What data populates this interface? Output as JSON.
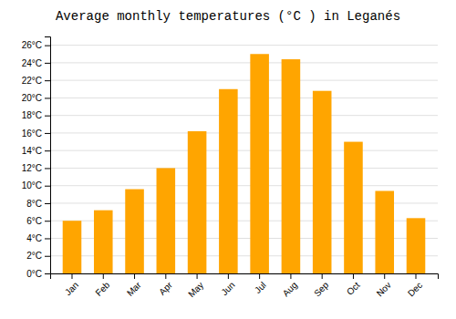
{
  "chart_data": {
    "type": "bar",
    "title": "Average monthly temperatures (°C ) in Leganés",
    "categories": [
      "Jan",
      "Feb",
      "Mar",
      "Apr",
      "May",
      "Jun",
      "Jul",
      "Aug",
      "Sep",
      "Oct",
      "Nov",
      "Dec"
    ],
    "values": [
      6.0,
      7.2,
      9.6,
      12.0,
      16.2,
      21.0,
      25.0,
      24.4,
      20.8,
      15.0,
      9.4,
      6.3
    ],
    "color": "#FFA500",
    "ylim": [
      0,
      27
    ],
    "yticks": [
      {
        "value": 0,
        "label": "0°C"
      },
      {
        "value": 2,
        "label": "2°C"
      },
      {
        "value": 4,
        "label": "4°C"
      },
      {
        "value": 6,
        "label": "6°C"
      },
      {
        "value": 8,
        "label": "8°C"
      },
      {
        "value": 10,
        "label": "10°C"
      },
      {
        "value": 12,
        "label": "12°C"
      },
      {
        "value": 14,
        "label": "14°C"
      },
      {
        "value": 16,
        "label": "16°C"
      },
      {
        "value": 18,
        "label": "18°C"
      },
      {
        "value": 20,
        "label": "20°C"
      },
      {
        "value": 22,
        "label": "22°C"
      },
      {
        "value": 24,
        "label": "24°C"
      },
      {
        "value": 26,
        "label": "26°C"
      }
    ],
    "grid": true
  }
}
